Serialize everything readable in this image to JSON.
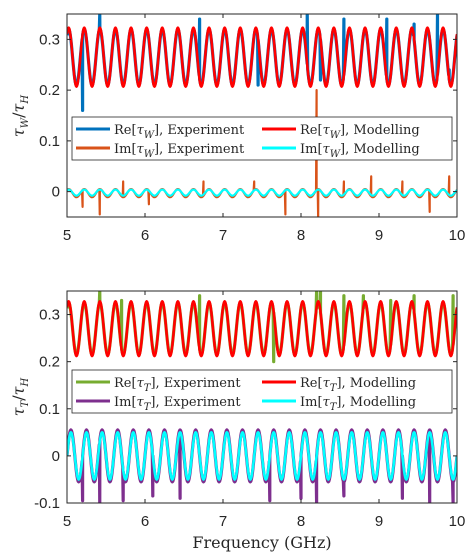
{
  "figure": {
    "xlabel": "Frequency (GHz)"
  },
  "chart_data": [
    {
      "type": "line",
      "ylabel": "τ_W/τ_H",
      "xlim": [
        5,
        10
      ],
      "ylim": [
        -0.05,
        0.35
      ],
      "xticks": [
        5,
        6,
        7,
        8,
        9,
        10
      ],
      "yticks": [
        0,
        0.1,
        0.2,
        0.3
      ],
      "xtick_labels": [
        "5",
        "6",
        "7",
        "8",
        "9",
        "10"
      ],
      "ytick_labels": [
        "0",
        "0.1",
        "0.2",
        "0.3"
      ],
      "grid": false,
      "legend_position": "center",
      "oscillation_period_ghz": 0.2,
      "series": [
        {
          "name": "Re[τ_W], Experiment",
          "color": "#0072BD",
          "center": 0.265,
          "amplitude": 0.055,
          "width": 3.2,
          "spikes": [
            [
              5.2,
              0.16
            ],
            [
              5.42,
              0.35
            ],
            [
              6.7,
              0.34
            ],
            [
              7.45,
              0.21
            ],
            [
              8.08,
              0.35
            ],
            [
              8.25,
              0.22
            ],
            [
              8.55,
              0.34
            ],
            [
              9.1,
              0.34
            ],
            [
              9.45,
              0.33
            ],
            [
              9.75,
              0.35
            ],
            [
              9.9,
              0.24
            ]
          ]
        },
        {
          "name": "Im[τ_W], Experiment",
          "color": "#D95319",
          "center": -0.003,
          "amplitude": 0.008,
          "width": 2.2,
          "spikes": [
            [
              5.2,
              -0.03
            ],
            [
              5.42,
              -0.045
            ],
            [
              5.72,
              0.02
            ],
            [
              6.05,
              -0.025
            ],
            [
              6.75,
              0.02
            ],
            [
              7.4,
              0.02
            ],
            [
              7.8,
              -0.045
            ],
            [
              8.2,
              0.2
            ],
            [
              8.22,
              -0.05
            ],
            [
              8.55,
              0.02
            ],
            [
              8.9,
              0.03
            ],
            [
              9.3,
              0.02
            ],
            [
              9.65,
              -0.04
            ],
            [
              9.9,
              0.03
            ]
          ]
        },
        {
          "name": "Re[τ_W], Modelling",
          "color": "#FF0000",
          "center": 0.265,
          "amplitude": 0.058,
          "width": 2.6,
          "spikes": []
        },
        {
          "name": "Im[τ_W], Modelling",
          "color": "#00FFFF",
          "center": -0.002,
          "amplitude": 0.006,
          "width": 2.2,
          "spikes": []
        }
      ]
    },
    {
      "type": "line",
      "ylabel": "τ_T/τ_H",
      "xlim": [
        5,
        10
      ],
      "ylim": [
        -0.1,
        0.35
      ],
      "xticks": [
        5,
        6,
        7,
        8,
        9,
        10
      ],
      "yticks": [
        -0.1,
        0,
        0.1,
        0.2,
        0.3
      ],
      "xtick_labels": [
        "5",
        "6",
        "7",
        "8",
        "9",
        "10"
      ],
      "ytick_labels": [
        "-0.1",
        "0",
        "0.1",
        "0.2",
        "0.3"
      ],
      "grid": false,
      "legend_position": "center",
      "oscillation_period_ghz": 0.2,
      "series": [
        {
          "name": "Re[τ_T], Experiment",
          "color": "#77AC30",
          "center": 0.27,
          "amplitude": 0.055,
          "width": 3.2,
          "spikes": [
            [
              5.42,
              0.35
            ],
            [
              5.7,
              0.33
            ],
            [
              6.7,
              0.34
            ],
            [
              7.65,
              0.2
            ],
            [
              8.2,
              0.35
            ],
            [
              8.25,
              0.35
            ],
            [
              8.55,
              0.34
            ],
            [
              8.8,
              0.34
            ],
            [
              9.15,
              0.33
            ],
            [
              9.45,
              0.34
            ],
            [
              9.95,
              0.34
            ]
          ]
        },
        {
          "name": "Im[τ_T], Experiment",
          "color": "#7E2F8E",
          "center": 0.0,
          "amplitude": 0.055,
          "width": 3.2,
          "spikes": [
            [
              5.2,
              -0.095
            ],
            [
              5.42,
              -0.1
            ],
            [
              5.72,
              -0.095
            ],
            [
              6.1,
              -0.085
            ],
            [
              6.45,
              -0.09
            ],
            [
              7.6,
              -0.095
            ],
            [
              8.0,
              -0.09
            ],
            [
              8.2,
              -0.1
            ],
            [
              8.55,
              -0.085
            ],
            [
              9.3,
              -0.09
            ],
            [
              9.65,
              -0.1
            ],
            [
              9.95,
              -0.1
            ]
          ]
        },
        {
          "name": "Re[τ_T], Modelling",
          "color": "#FF0000",
          "center": 0.27,
          "amplitude": 0.058,
          "width": 2.6,
          "spikes": []
        },
        {
          "name": "Im[τ_T], Modelling",
          "color": "#00FFFF",
          "center": 0.0,
          "amplitude": 0.05,
          "width": 2.6,
          "spikes": []
        }
      ]
    }
  ]
}
